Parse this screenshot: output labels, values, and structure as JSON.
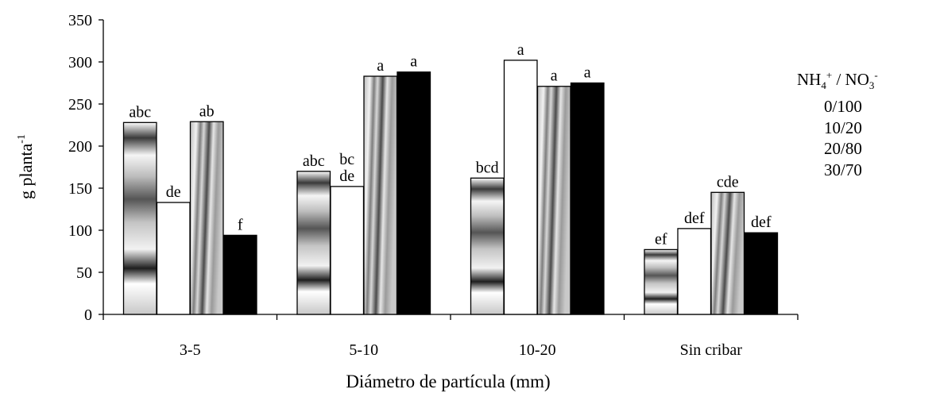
{
  "chart_data": {
    "type": "bar",
    "title": "",
    "xlabel": "Diámetro de partícula (mm)",
    "ylabel": "g planta",
    "ylabel_superscript": "-1",
    "ylim": [
      0,
      350
    ],
    "yticks": [
      "0",
      "50",
      "100",
      "150",
      "200",
      "250",
      "300",
      "350"
    ],
    "grid": false,
    "categories": [
      "3-5",
      "5-10",
      "10-20",
      "Sin cribar"
    ],
    "legend": {
      "position": "right",
      "title": {
        "a": "NH",
        "a_sub": "4",
        "a_sup": "+",
        "sep": "/",
        "b": "NO",
        "b_sub": "3",
        "b_sup": "-"
      }
    },
    "series": [
      {
        "name": "0/100",
        "pattern": "gradient-bands",
        "values": [
          228,
          170,
          162,
          77
        ],
        "letters": [
          "abc",
          "abc",
          "bcd",
          "ef"
        ]
      },
      {
        "name": "10/20",
        "pattern": "white",
        "values": [
          133,
          152,
          302,
          102
        ],
        "letters": [
          "de",
          "bc\nde",
          "a",
          "def"
        ]
      },
      {
        "name": "20/80",
        "pattern": "diagonal-gray",
        "values": [
          229,
          283,
          271,
          145
        ],
        "letters": [
          "ab",
          "a",
          "a",
          "cde"
        ]
      },
      {
        "name": "30/70",
        "pattern": "black",
        "values": [
          94,
          288,
          275,
          97
        ],
        "letters": [
          "f",
          "a",
          "a",
          "def"
        ]
      }
    ]
  }
}
